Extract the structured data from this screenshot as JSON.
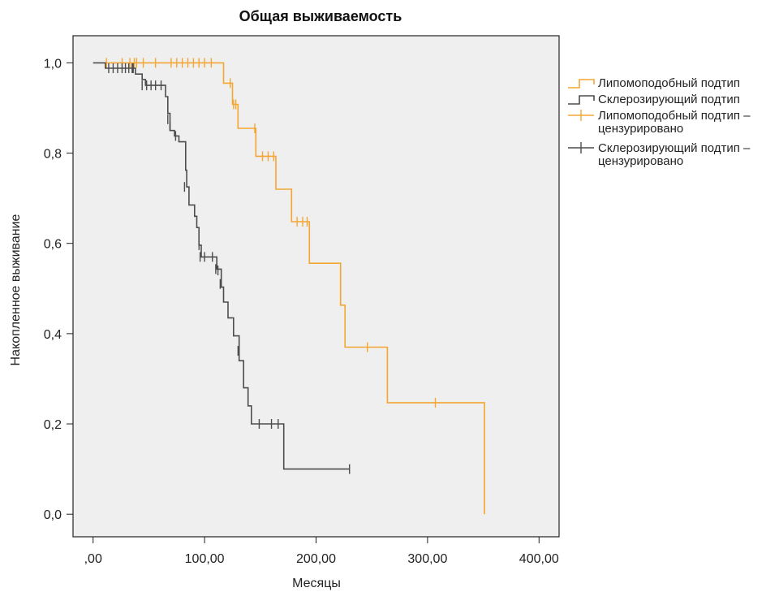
{
  "chart_data": {
    "type": "line",
    "step": true,
    "title": "Общая выживаемость",
    "xlabel": "Месяцы",
    "ylabel": "Накопленное выживание",
    "xlim": [
      -18,
      418
    ],
    "ylim": [
      -0.05,
      1.06
    ],
    "xticks": [
      {
        "value": 0,
        "label": ",00"
      },
      {
        "value": 100,
        "label": "100,00"
      },
      {
        "value": 200,
        "label": "200,00"
      },
      {
        "value": 300,
        "label": "300,00"
      },
      {
        "value": 400,
        "label": "400,00"
      }
    ],
    "yticks": [
      {
        "value": 0,
        "label": "0,0"
      },
      {
        "value": 0.2,
        "label": "0,2"
      },
      {
        "value": 0.4,
        "label": "0,4"
      },
      {
        "value": 0.6,
        "label": "0,6"
      },
      {
        "value": 0.8,
        "label": "0,8"
      },
      {
        "value": 1.0,
        "label": "1,0"
      }
    ],
    "grid": false,
    "plot_background": "#efefef",
    "legend_position": "right",
    "series": [
      {
        "name": "Липомоподобный подтип",
        "censored_name": "Липомоподобный подтип – цензурировано",
        "color": "#f4a633",
        "steps": [
          [
            10,
            1.0
          ],
          [
            117,
            1.0
          ],
          [
            117,
            0.955
          ],
          [
            125,
            0.955
          ],
          [
            125,
            0.908
          ],
          [
            130,
            0.908
          ],
          [
            130,
            0.855
          ],
          [
            146,
            0.855
          ],
          [
            146,
            0.793
          ],
          [
            164,
            0.793
          ],
          [
            164,
            0.72
          ],
          [
            178,
            0.72
          ],
          [
            178,
            0.648
          ],
          [
            194,
            0.648
          ],
          [
            194,
            0.556
          ],
          [
            222,
            0.556
          ],
          [
            222,
            0.463
          ],
          [
            226,
            0.463
          ],
          [
            226,
            0.37
          ],
          [
            264,
            0.37
          ],
          [
            264,
            0.247
          ],
          [
            351,
            0.247
          ],
          [
            351,
            0.0
          ]
        ],
        "censored": [
          [
            12,
            1.0
          ],
          [
            26,
            1.0
          ],
          [
            33,
            1.0
          ],
          [
            37,
            1.0
          ],
          [
            39,
            1.0
          ],
          [
            45,
            1.0
          ],
          [
            56,
            1.0
          ],
          [
            70,
            1.0
          ],
          [
            75,
            1.0
          ],
          [
            80,
            1.0
          ],
          [
            85,
            1.0
          ],
          [
            90,
            1.0
          ],
          [
            95,
            1.0
          ],
          [
            100,
            1.0
          ],
          [
            106,
            1.0
          ],
          [
            123,
            0.955
          ],
          [
            126,
            0.908
          ],
          [
            128,
            0.908
          ],
          [
            145,
            0.855
          ],
          [
            152,
            0.793
          ],
          [
            157,
            0.793
          ],
          [
            162,
            0.793
          ],
          [
            183,
            0.648
          ],
          [
            188,
            0.648
          ],
          [
            192,
            0.648
          ],
          [
            246,
            0.37
          ],
          [
            307,
            0.247
          ]
        ]
      },
      {
        "name": "Склерозирующий подтип",
        "censored_name": "Склерозирующий подтип – цензурировано",
        "color": "#4d4d4d",
        "steps": [
          [
            0,
            1.0
          ],
          [
            11,
            1.0
          ],
          [
            11,
            0.988
          ],
          [
            38,
            0.988
          ],
          [
            38,
            0.975
          ],
          [
            44,
            0.975
          ],
          [
            44,
            0.963
          ],
          [
            47,
            0.963
          ],
          [
            47,
            0.95
          ],
          [
            65,
            0.95
          ],
          [
            65,
            0.925
          ],
          [
            67,
            0.925
          ],
          [
            67,
            0.888
          ],
          [
            69,
            0.888
          ],
          [
            69,
            0.85
          ],
          [
            73,
            0.85
          ],
          [
            73,
            0.838
          ],
          [
            77,
            0.838
          ],
          [
            77,
            0.825
          ],
          [
            83,
            0.825
          ],
          [
            83,
            0.762
          ],
          [
            84,
            0.762
          ],
          [
            84,
            0.725
          ],
          [
            86,
            0.725
          ],
          [
            86,
            0.685
          ],
          [
            91,
            0.685
          ],
          [
            91,
            0.66
          ],
          [
            93,
            0.66
          ],
          [
            93,
            0.635
          ],
          [
            95,
            0.635
          ],
          [
            95,
            0.596
          ],
          [
            97,
            0.596
          ],
          [
            97,
            0.57
          ],
          [
            111,
            0.57
          ],
          [
            111,
            0.543
          ],
          [
            115,
            0.543
          ],
          [
            115,
            0.503
          ],
          [
            117,
            0.503
          ],
          [
            117,
            0.47
          ],
          [
            121,
            0.47
          ],
          [
            121,
            0.435
          ],
          [
            126,
            0.435
          ],
          [
            126,
            0.395
          ],
          [
            131,
            0.395
          ],
          [
            131,
            0.34
          ],
          [
            135,
            0.34
          ],
          [
            135,
            0.28
          ],
          [
            139,
            0.28
          ],
          [
            139,
            0.24
          ],
          [
            142,
            0.24
          ],
          [
            142,
            0.2
          ],
          [
            171,
            0.2
          ],
          [
            171,
            0.1
          ],
          [
            230,
            0.1
          ]
        ],
        "censored": [
          [
            14,
            0.988
          ],
          [
            18,
            0.988
          ],
          [
            22,
            0.988
          ],
          [
            26,
            0.988
          ],
          [
            29,
            0.988
          ],
          [
            32,
            0.988
          ],
          [
            35,
            0.988
          ],
          [
            36,
            0.988
          ],
          [
            44,
            0.95
          ],
          [
            48,
            0.95
          ],
          [
            52,
            0.95
          ],
          [
            56,
            0.95
          ],
          [
            61,
            0.95
          ],
          [
            67,
            0.875
          ],
          [
            69,
            0.86
          ],
          [
            74,
            0.838
          ],
          [
            82,
            0.725
          ],
          [
            95,
            0.596
          ],
          [
            96,
            0.57
          ],
          [
            100,
            0.57
          ],
          [
            107,
            0.57
          ],
          [
            110,
            0.543
          ],
          [
            112,
            0.54
          ],
          [
            114,
            0.51
          ],
          [
            130,
            0.362
          ],
          [
            149,
            0.2
          ],
          [
            160,
            0.2
          ],
          [
            166,
            0.2
          ],
          [
            230,
            0.1
          ]
        ]
      }
    ]
  }
}
